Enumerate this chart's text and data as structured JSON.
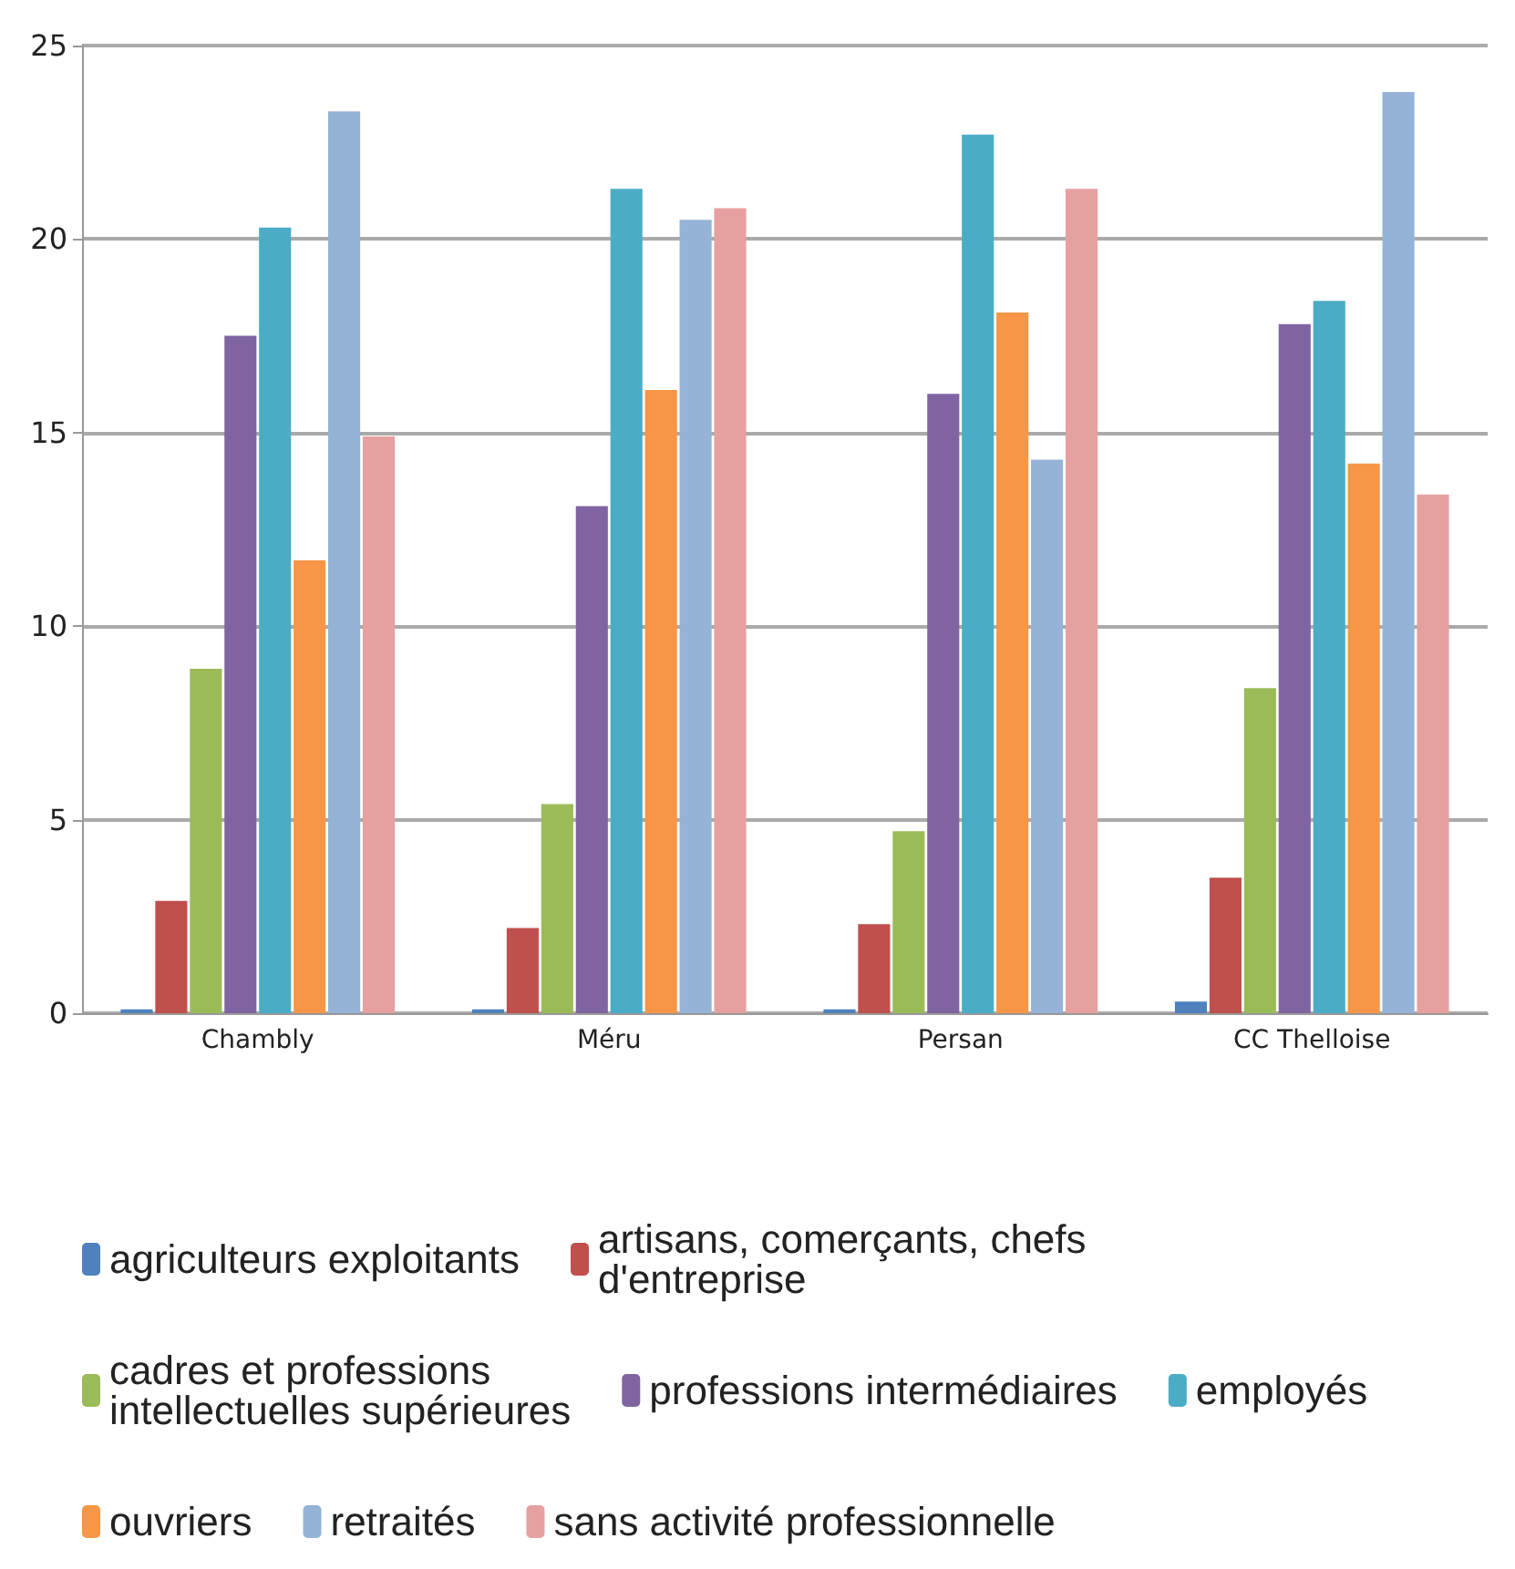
{
  "chart_data": {
    "type": "bar",
    "categories": [
      "Chambly",
      "Méru",
      "Persan",
      "CC Thelloise"
    ],
    "series": [
      {
        "name": "agriculteurs exploitants",
        "color": "#4f81bd",
        "values": [
          0.1,
          0.1,
          0.1,
          0.3
        ]
      },
      {
        "name": "artisans, comerçants, chefs d'entreprise",
        "color": "#c0504d",
        "values": [
          2.9,
          2.2,
          2.3,
          3.5
        ]
      },
      {
        "name": "cadres et professions intellectuelles supérieures",
        "color": "#9bbb59",
        "values": [
          8.9,
          5.4,
          4.7,
          8.4
        ]
      },
      {
        "name": "professions intermédiaires",
        "color": "#8064a2",
        "values": [
          17.5,
          13.1,
          16.0,
          17.8
        ]
      },
      {
        "name": "employés",
        "color": "#4bacc6",
        "values": [
          20.3,
          21.3,
          22.7,
          18.4
        ]
      },
      {
        "name": "ouvriers",
        "color": "#f79646",
        "values": [
          11.7,
          16.1,
          18.1,
          14.2
        ]
      },
      {
        "name": "retraités",
        "color": "#95b3d7",
        "values": [
          23.3,
          20.5,
          14.3,
          23.8
        ]
      },
      {
        "name": "sans activité professionnelle",
        "color": "#e6a0a0",
        "values": [
          14.9,
          20.8,
          21.3,
          13.4
        ]
      }
    ],
    "ylim": [
      0,
      25
    ],
    "yticks": [
      0,
      5,
      10,
      15,
      20,
      25
    ],
    "grid": "y",
    "legend": "bottom"
  }
}
